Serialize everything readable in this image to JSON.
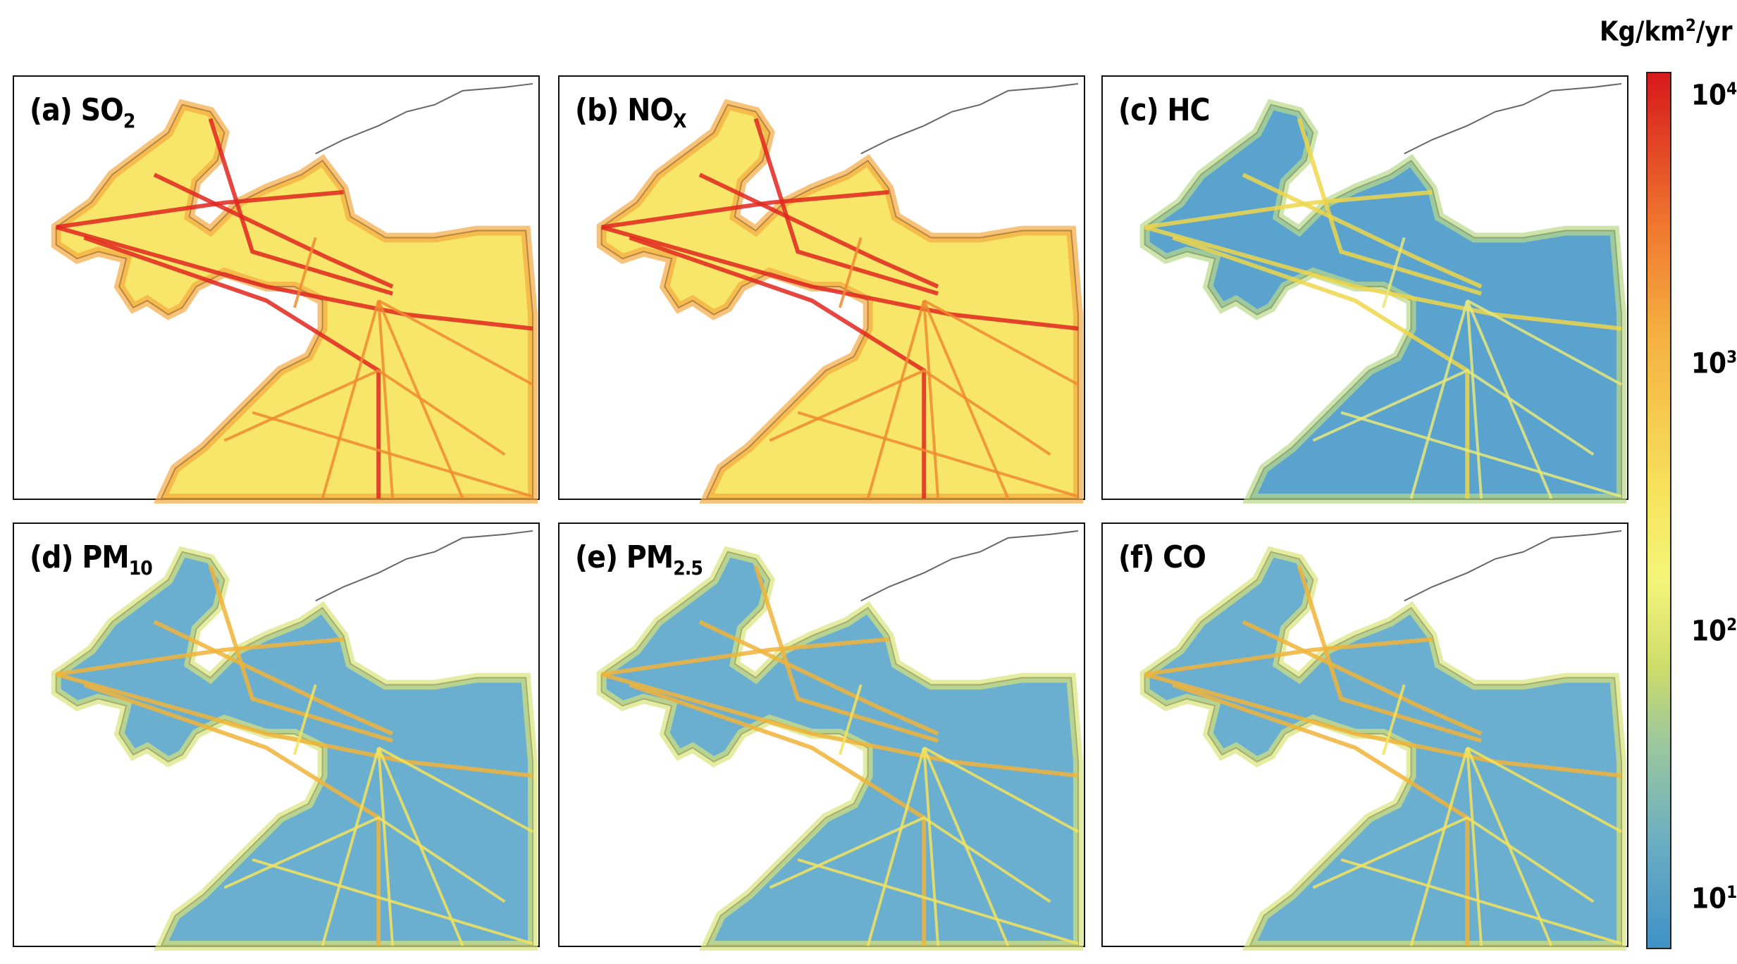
{
  "colorbar": {
    "unit_prefix": "Kg/km",
    "unit_exp": "2",
    "unit_suffix": "/yr",
    "ticks": [
      {
        "base": "10",
        "exp": "4"
      },
      {
        "base": "10",
        "exp": "3"
      },
      {
        "base": "10",
        "exp": "2"
      },
      {
        "base": "10",
        "exp": "1"
      }
    ],
    "colors": [
      "#d7191c",
      "#f07a2f",
      "#f5b041",
      "#f7e35b",
      "#cddc6a",
      "#6baec3",
      "#3f91c7"
    ]
  },
  "panels": [
    {
      "prefix": "(a) SO",
      "sub": "2",
      "intensity": "high"
    },
    {
      "prefix": "(b) NO",
      "sub": "X",
      "intensity": "high"
    },
    {
      "prefix": "(c) HC",
      "sub": "",
      "intensity": "low"
    },
    {
      "prefix": "(d) PM",
      "sub": "10",
      "intensity": "medium"
    },
    {
      "prefix": "(e) PM",
      "sub": "2.5",
      "intensity": "medium"
    },
    {
      "prefix": "(f) CO",
      "sub": "",
      "intensity": "medium"
    }
  ]
}
